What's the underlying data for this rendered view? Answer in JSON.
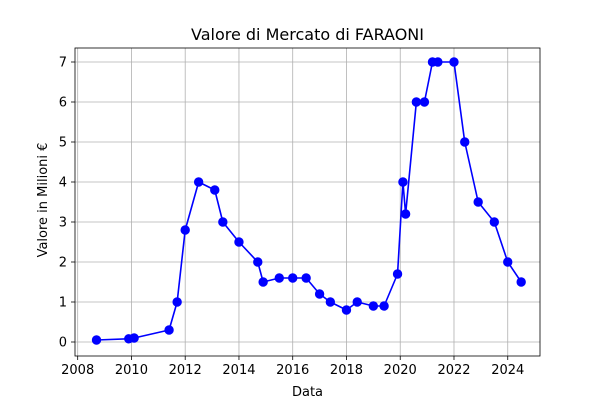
{
  "chart_data": {
    "type": "line",
    "title": "Valore di Mercato di FARAONI",
    "xlabel": "Data",
    "ylabel": "Valore in Milioni €",
    "xlim": [
      2007.9,
      2025.2
    ],
    "ylim": [
      -0.35,
      7.35
    ],
    "xticks": [
      2008,
      2010,
      2012,
      2014,
      2016,
      2018,
      2020,
      2022,
      2024
    ],
    "yticks": [
      0,
      1,
      2,
      3,
      4,
      5,
      6,
      7
    ],
    "grid": true,
    "series": [
      {
        "color": "#0000ff",
        "x": [
          2008.7,
          2009.9,
          2010.1,
          2011.4,
          2011.7,
          2012.0,
          2012.5,
          2013.1,
          2013.4,
          2014.0,
          2014.7,
          2014.9,
          2015.5,
          2016.0,
          2016.5,
          2017.0,
          2017.4,
          2018.0,
          2018.4,
          2019.0,
          2019.4,
          2019.9,
          2020.1,
          2020.2,
          2020.6,
          2020.9,
          2021.2,
          2021.4,
          2022.0,
          2022.4,
          2022.9,
          2023.5,
          2024.0,
          2024.5
        ],
        "y": [
          0.05,
          0.08,
          0.1,
          0.3,
          1.0,
          2.8,
          4.0,
          3.8,
          3.0,
          2.5,
          2.0,
          1.5,
          1.6,
          1.6,
          1.6,
          1.2,
          1.0,
          0.8,
          1.0,
          0.9,
          0.9,
          1.7,
          4.0,
          3.2,
          6.0,
          6.0,
          7.0,
          7.0,
          7.0,
          5.0,
          3.5,
          3.0,
          2.0,
          1.5
        ]
      }
    ]
  }
}
